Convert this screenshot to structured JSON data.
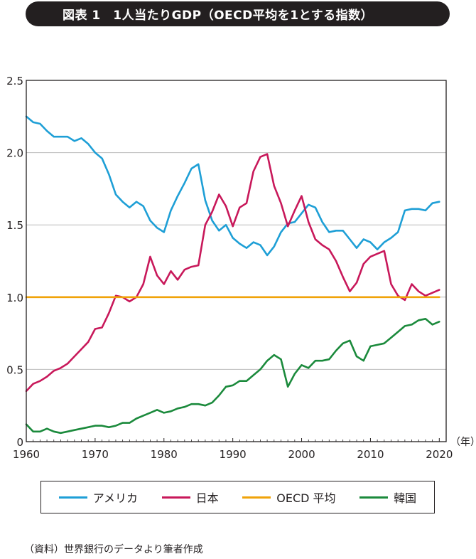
{
  "title": "図表 1　1人当たりGDP（OECD平均を1とする指数）",
  "source": "（資料）世界銀行のデータより筆者作成",
  "colors": {
    "usa": "#1e9fd6",
    "japan": "#c8185a",
    "oecd": "#f0a30a",
    "korea": "#1b8a3c",
    "grid": "#bcbcbc",
    "axis": "#231f20"
  },
  "chart_data": {
    "type": "line",
    "xlabel": "",
    "ylabel": "",
    "xunit": "（年）",
    "xlim": [
      1960,
      2021
    ],
    "ylim": [
      0,
      2.5
    ],
    "xticks": [
      1960,
      1970,
      1980,
      1990,
      2000,
      2010,
      2020
    ],
    "yticks": [
      0,
      0.5,
      1.0,
      1.5,
      2.0,
      2.5
    ],
    "ytick_labels": [
      "0",
      "0.5",
      "1.0",
      "1.5",
      "2.0",
      "2.5"
    ],
    "grid": "horizontal",
    "legend_position": "bottom",
    "x": [
      1960,
      1961,
      1962,
      1963,
      1964,
      1965,
      1966,
      1967,
      1968,
      1969,
      1970,
      1971,
      1972,
      1973,
      1974,
      1975,
      1976,
      1977,
      1978,
      1979,
      1980,
      1981,
      1982,
      1983,
      1984,
      1985,
      1986,
      1987,
      1988,
      1989,
      1990,
      1991,
      1992,
      1993,
      1994,
      1995,
      1996,
      1997,
      1998,
      1999,
      2000,
      2001,
      2002,
      2003,
      2004,
      2005,
      2006,
      2007,
      2008,
      2009,
      2010,
      2011,
      2012,
      2013,
      2014,
      2015,
      2016,
      2017,
      2018,
      2019,
      2020
    ],
    "series": [
      {
        "key": "usa",
        "name": "アメリカ",
        "values": [
          2.25,
          2.21,
          2.2,
          2.15,
          2.11,
          2.11,
          2.11,
          2.08,
          2.1,
          2.06,
          2.0,
          1.96,
          1.85,
          1.71,
          1.66,
          1.62,
          1.66,
          1.63,
          1.53,
          1.48,
          1.45,
          1.6,
          1.7,
          1.79,
          1.89,
          1.92,
          1.67,
          1.53,
          1.46,
          1.5,
          1.41,
          1.37,
          1.34,
          1.38,
          1.36,
          1.29,
          1.35,
          1.45,
          1.51,
          1.52,
          1.58,
          1.64,
          1.62,
          1.52,
          1.45,
          1.46,
          1.46,
          1.4,
          1.34,
          1.4,
          1.38,
          1.33,
          1.38,
          1.41,
          1.45,
          1.6,
          1.61,
          1.61,
          1.6,
          1.65,
          1.66
        ]
      },
      {
        "key": "japan",
        "name": "日本",
        "values": [
          0.35,
          0.4,
          0.42,
          0.45,
          0.49,
          0.51,
          0.54,
          0.59,
          0.64,
          0.69,
          0.78,
          0.79,
          0.89,
          1.01,
          1.0,
          0.97,
          1.0,
          1.09,
          1.28,
          1.15,
          1.09,
          1.18,
          1.12,
          1.19,
          1.21,
          1.22,
          1.5,
          1.59,
          1.71,
          1.63,
          1.49,
          1.62,
          1.65,
          1.87,
          1.97,
          1.99,
          1.77,
          1.65,
          1.49,
          1.6,
          1.7,
          1.52,
          1.4,
          1.36,
          1.33,
          1.25,
          1.14,
          1.04,
          1.1,
          1.23,
          1.28,
          1.3,
          1.32,
          1.09,
          1.01,
          0.98,
          1.09,
          1.04,
          1.01,
          1.03,
          1.05
        ]
      },
      {
        "key": "oecd",
        "name": "OECD 平均",
        "values": [
          1,
          1,
          1,
          1,
          1,
          1,
          1,
          1,
          1,
          1,
          1,
          1,
          1,
          1,
          1,
          1,
          1,
          1,
          1,
          1,
          1,
          1,
          1,
          1,
          1,
          1,
          1,
          1,
          1,
          1,
          1,
          1,
          1,
          1,
          1,
          1,
          1,
          1,
          1,
          1,
          1,
          1,
          1,
          1,
          1,
          1,
          1,
          1,
          1,
          1,
          1,
          1,
          1,
          1,
          1,
          1,
          1,
          1,
          1,
          1,
          1
        ]
      },
      {
        "key": "korea",
        "name": "韓国",
        "values": [
          0.12,
          0.07,
          0.07,
          0.09,
          0.07,
          0.06,
          0.07,
          0.08,
          0.09,
          0.1,
          0.11,
          0.11,
          0.1,
          0.11,
          0.13,
          0.13,
          0.16,
          0.18,
          0.2,
          0.22,
          0.2,
          0.21,
          0.23,
          0.24,
          0.26,
          0.26,
          0.25,
          0.27,
          0.32,
          0.38,
          0.39,
          0.42,
          0.42,
          0.46,
          0.5,
          0.56,
          0.6,
          0.57,
          0.38,
          0.47,
          0.53,
          0.51,
          0.56,
          0.56,
          0.57,
          0.63,
          0.68,
          0.7,
          0.59,
          0.56,
          0.66,
          0.67,
          0.68,
          0.72,
          0.76,
          0.8,
          0.81,
          0.84,
          0.85,
          0.81,
          0.83
        ]
      }
    ]
  }
}
